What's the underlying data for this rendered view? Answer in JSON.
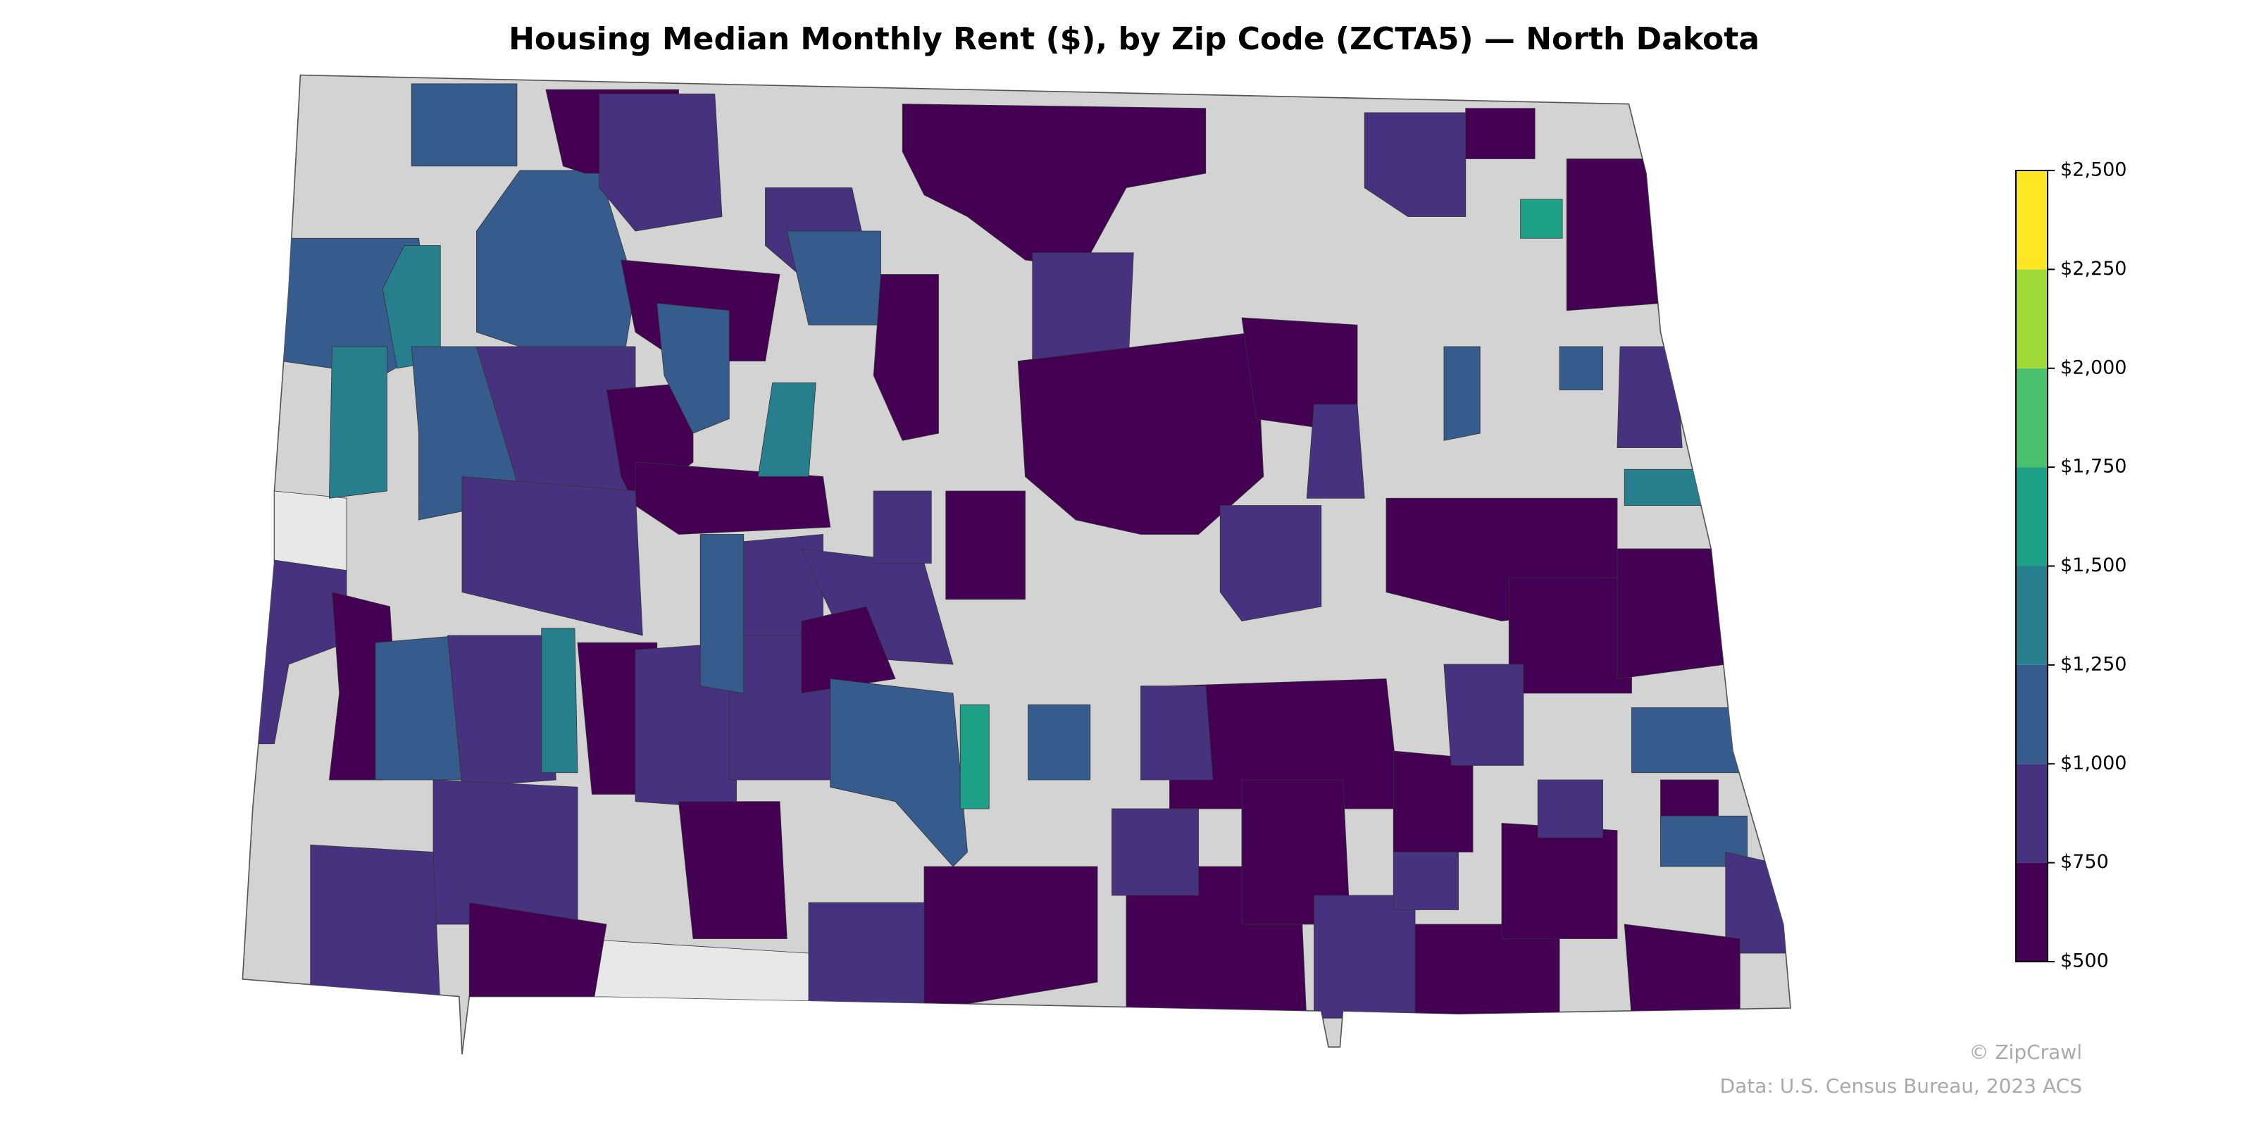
{
  "chart_data": {
    "type": "choropleth",
    "title": "Housing Median Monthly Rent ($), by Zip Code (ZCTA5) — North Dakota",
    "colorbar": {
      "ticks": [
        {
          "value": 500,
          "label": "$500"
        },
        {
          "value": 750,
          "label": "$750"
        },
        {
          "value": 1000,
          "label": "$1,000"
        },
        {
          "value": 1250,
          "label": "$1,250"
        },
        {
          "value": 1500,
          "label": "$1,500"
        },
        {
          "value": 1750,
          "label": "$1,750"
        },
        {
          "value": 2000,
          "label": "$2,000"
        },
        {
          "value": 2250,
          "label": "$2,250"
        },
        {
          "value": 2500,
          "label": "$2,500"
        }
      ],
      "colors": [
        "#440154",
        "#46327e",
        "#365c8d",
        "#277f8e",
        "#1fa187",
        "#4ac16d",
        "#a0da39",
        "#fde725"
      ]
    },
    "credit": "© ZipCrawl",
    "source": "Data: U.S. Census Bureau, 2023 ACS"
  }
}
